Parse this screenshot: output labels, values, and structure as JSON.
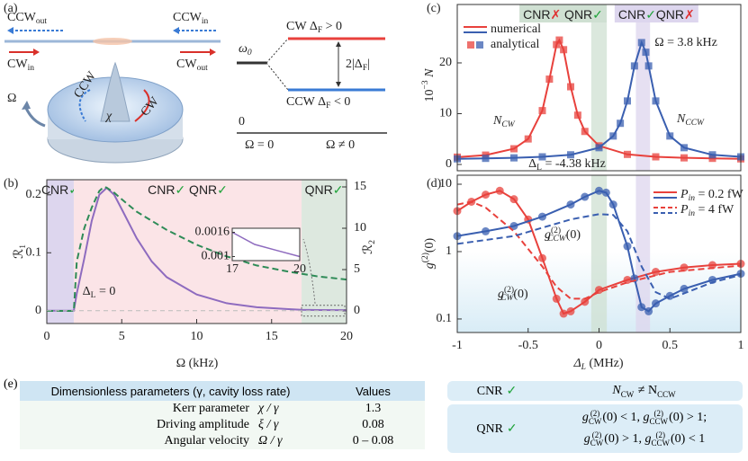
{
  "diagram": {
    "label": "(a)",
    "texts": [
      [
        {
          "t": "CCW",
          "sub": "out"
        }
      ],
      [
        {
          "t": "CCW",
          "sub": "in"
        }
      ],
      [
        {
          "t": "CW",
          "sub": "in"
        }
      ],
      [
        {
          "t": "CW",
          "sub": "out"
        }
      ],
      [
        {
          "t": "Ω"
        }
      ],
      [
        {
          "t": "CCW"
        }
      ],
      [
        {
          "t": "χ",
          "italic": true
        }
      ],
      [
        {
          "t": "CW"
        }
      ],
      [
        {
          "t": "ω",
          "sub": "0",
          "italic": true
        }
      ],
      [
        {
          "t": "CW   "
        },
        {
          "t": "Δ",
          "sub": "F"
        },
        {
          "t": " > 0"
        }
      ],
      [
        {
          "t": "2|Δ",
          "sub": "F"
        },
        {
          "t": "|"
        }
      ],
      [
        {
          "t": "CCW   "
        },
        {
          "t": "Δ",
          "sub": "F"
        },
        {
          "t": " < 0"
        }
      ],
      [
        {
          "t": "0"
        }
      ],
      [
        {
          "t": "Ω = 0"
        }
      ],
      [
        {
          "t": "Ω ≠ 0"
        }
      ]
    ]
  },
  "chart_data": [
    {
      "type": "line",
      "panel": "(b)",
      "x_label": [
        {
          "t": "Ω (kHz)"
        }
      ],
      "y_label": [
        {
          "t": "ℛ",
          "sub": "1"
        }
      ],
      "y2_label": [
        {
          "t": "ℛ",
          "sub": "2"
        }
      ],
      "xlim": [
        0,
        20
      ],
      "xticks": [
        0,
        5,
        10,
        15,
        20
      ],
      "ylim": [
        -0.022,
        0.226
      ],
      "yticks": [
        0,
        0.1,
        0.2
      ],
      "y_color": "#8e6bbf",
      "y2lim": [
        -1.52,
        15.87
      ],
      "y2ticks": [
        0,
        5,
        10,
        15
      ],
      "y2_color": "#2e8b57",
      "regions": [
        {
          "from": 0,
          "to": 1.8,
          "color": "#ddd6ee",
          "label": [
            {
              "t": "CNR"
            },
            {
              "t": "✓",
              "color": "#1fa33a"
            }
          ]
        },
        {
          "from": 1.8,
          "to": 17,
          "color": "#fbe4e7",
          "label": [
            {
              "t": "CNR"
            },
            {
              "t": "✓",
              "color": "#1fa33a"
            },
            {
              "t": " QNR"
            },
            {
              "t": "✓",
              "color": "#1fa33a"
            }
          ]
        },
        {
          "from": 17,
          "to": 20,
          "color": "#dde8df",
          "label": [
            {
              "t": "QNR"
            },
            {
              "t": "✓",
              "color": "#1fa33a"
            }
          ]
        }
      ],
      "series": [
        {
          "color": "#8e6bbf",
          "x": [
            0,
            1.8,
            2,
            2.5,
            3,
            3.5,
            4,
            4.5,
            5,
            6,
            7,
            8,
            10,
            12,
            14,
            16,
            17,
            18,
            20
          ],
          "values": [
            0,
            0,
            0.03,
            0.09,
            0.155,
            0.2,
            0.212,
            0.2,
            0.175,
            0.125,
            0.085,
            0.058,
            0.028,
            0.013,
            0.006,
            0.003,
            0.0016,
            0.0013,
            0.001
          ]
        },
        {
          "color": "#2e8b57",
          "dash": true,
          "axis": "y2",
          "x": [
            0,
            1.8,
            2,
            2.5,
            3,
            3.5,
            3.8,
            4,
            4.5,
            5,
            6,
            8,
            10,
            12,
            14,
            16,
            18,
            20
          ],
          "values": [
            0,
            0,
            6,
            10,
            12.5,
            14.5,
            15,
            14.9,
            14.3,
            13.5,
            12,
            9.8,
            8,
            6.6,
            5.5,
            4.8,
            4.2,
            3.8
          ]
        }
      ],
      "annotations": [
        [
          {
            "t": "Δ",
            "sub": "L"
          },
          {
            "t": " = 0"
          }
        ]
      ],
      "inset": {
        "xlim": [
          17,
          20
        ],
        "xticks": [
          17,
          20
        ],
        "ylim": [
          0.0009,
          0.0017
        ],
        "yticks": [
          0.001,
          0.0016
        ],
        "x": [
          17,
          18,
          19,
          20
        ],
        "values": [
          0.0016,
          0.0013,
          0.00115,
          0.001
        ],
        "color": "#8e6bbf"
      }
    },
    {
      "type": "line",
      "panel": "(c)",
      "y_label": [
        {
          "t": "10",
          "sup": "−3"
        },
        {
          "t": " N",
          "italic": true
        }
      ],
      "xlim": [
        -1,
        1
      ],
      "ylim": [
        -1.24,
        31.5
      ],
      "yticks": [
        0,
        10,
        20
      ],
      "regions": [
        {
          "from": -0.055,
          "to": 0.055,
          "color": "#cfe0d2",
          "label": [
            {
              "t": "CNR"
            },
            {
              "t": "✗",
              "color": "#e03030"
            },
            {
              "t": " QNR"
            },
            {
              "t": "✓",
              "color": "#1fa33a"
            }
          ]
        },
        {
          "from": 0.26,
          "to": 0.36,
          "color": "#ddd6ee",
          "label": [
            {
              "t": "CNR"
            },
            {
              "t": "✓",
              "color": "#1fa33a"
            },
            {
              "t": "QNR"
            },
            {
              "t": "✗",
              "color": "#e03030"
            }
          ]
        }
      ],
      "series": [
        {
          "color": "#e8413c",
          "marker": "square",
          "label": [
            {
              "t": "N",
              "sub": "CW",
              "italic": true
            }
          ],
          "x": [
            -1,
            -0.8,
            -0.6,
            -0.5,
            -0.4,
            -0.35,
            -0.3,
            -0.28,
            -0.25,
            -0.2,
            -0.15,
            -0.1,
            0,
            0.2,
            0.4,
            0.6,
            0.8,
            1
          ],
          "values": [
            1.44,
            1.84,
            3.09,
            5.02,
            10.6,
            16.8,
            23.6,
            24.5,
            22.6,
            15.3,
            9.7,
            6.5,
            3.66,
            1.98,
            1.5,
            1.3,
            1.2,
            1.1
          ]
        },
        {
          "color": "#3a5fb0",
          "marker": "square",
          "label": [
            {
              "t": "N",
              "sub": "CCW",
              "italic": true
            }
          ],
          "x": [
            -1,
            -0.8,
            -0.6,
            -0.4,
            -0.2,
            0,
            0.1,
            0.15,
            0.2,
            0.25,
            0.3,
            0.33,
            0.35,
            0.4,
            0.5,
            0.6,
            0.8,
            1
          ],
          "values": [
            1.1,
            1.2,
            1.3,
            1.5,
            1.9,
            3.3,
            5.6,
            8.1,
            12.5,
            19.4,
            24,
            22.1,
            19.4,
            12.5,
            5.6,
            3.3,
            1.9,
            1.5
          ]
        }
      ],
      "legend": [
        {
          "label": "numerical",
          "style": "line"
        },
        {
          "label": "analytical",
          "style": "marker"
        }
      ],
      "annotations": [
        [
          {
            "t": "Ω = 3.8 kHz"
          }
        ],
        [
          {
            "t": "Δ",
            "sub": "L"
          },
          {
            "t": " = -4.38 kHz"
          }
        ]
      ]
    },
    {
      "type": "line",
      "panel": "(d)",
      "log_y": true,
      "x_label": [
        {
          "t": "Δ",
          "sub": "L",
          "italic": true
        },
        {
          "t": " (MHz)"
        }
      ],
      "y_label": [
        {
          "t": "g",
          "sup": "(2)",
          "italic": true
        },
        {
          "t": "(0)"
        }
      ],
      "xlim": [
        -1,
        1
      ],
      "xticks": [
        -1,
        -0.5,
        0,
        0.5,
        1
      ],
      "ylim": [
        0.063,
        13.6
      ],
      "yticks": [
        0.1,
        1,
        10
      ],
      "regions": [
        {
          "from": -0.055,
          "to": 0.055,
          "color": "#cfe0d2"
        },
        {
          "from": 0.26,
          "to": 0.36,
          "color": "#ddd6ee"
        }
      ],
      "series": [
        {
          "color": "#e8413c",
          "marker": "circle",
          "label": [
            {
              "t": "g",
              "sup": "(2)",
              "sub": "CW",
              "italic": true
            },
            {
              "t": "(0)"
            }
          ],
          "x": [
            -1,
            -0.9,
            -0.8,
            -0.7,
            -0.6,
            -0.5,
            -0.4,
            -0.3,
            -0.25,
            -0.2,
            -0.1,
            0,
            0.2,
            0.4,
            0.6,
            0.8,
            1
          ],
          "values": [
            4,
            5.5,
            7,
            8,
            6,
            3,
            0.8,
            0.2,
            0.12,
            0.13,
            0.18,
            0.27,
            0.38,
            0.5,
            0.58,
            0.63,
            0.66
          ]
        },
        {
          "color": "#3a5fb0",
          "marker": "circle",
          "label": [
            {
              "t": "g",
              "sup": "(2)",
              "sub": "CCW",
              "italic": true
            },
            {
              "t": "(0)"
            }
          ],
          "x": [
            -1,
            -0.8,
            -0.6,
            -0.4,
            -0.2,
            -0.1,
            0,
            0.05,
            0.1,
            0.2,
            0.25,
            0.3,
            0.35,
            0.4,
            0.5,
            0.6,
            0.8,
            1
          ],
          "values": [
            1.7,
            2,
            2.4,
            3.3,
            5,
            6.5,
            8,
            7.5,
            5,
            1.2,
            0.4,
            0.15,
            0.13,
            0.17,
            0.22,
            0.28,
            0.38,
            0.47
          ]
        },
        {
          "color": "#e8413c",
          "dash": true,
          "x": [
            -1,
            -0.9,
            -0.8,
            -0.6,
            -0.4,
            -0.3,
            -0.2,
            -0.1,
            0,
            0.2,
            0.5,
            1
          ],
          "values": [
            5,
            5.5,
            4.5,
            2,
            0.6,
            0.3,
            0.2,
            0.2,
            0.25,
            0.35,
            0.5,
            0.62
          ]
        },
        {
          "color": "#3a5fb0",
          "dash": true,
          "x": [
            -1,
            -0.6,
            -0.2,
            0,
            0.1,
            0.2,
            0.3,
            0.4,
            0.5,
            0.6,
            0.8,
            1
          ],
          "values": [
            1.3,
            1.7,
            3,
            3.6,
            3.5,
            2,
            0.6,
            0.25,
            0.2,
            0.24,
            0.35,
            0.45
          ]
        }
      ],
      "legend": [
        {
          "label": [
            {
              "t": "P",
              "sub": "in",
              "italic": true
            },
            {
              "t": " = 0.2 fW"
            }
          ],
          "style": "solid"
        },
        {
          "label": [
            {
              "t": "P",
              "sub": "in",
              "italic": true
            },
            {
              "t": " = 4 fW"
            }
          ],
          "style": "dashed"
        }
      ]
    }
  ],
  "table": {
    "label": "(e)",
    "header": [
      "Dimensionless parameters (γ, cavity loss rate)",
      "Values"
    ],
    "rows": [
      [
        "Kerr parameter",
        "χ / γ",
        "1.3"
      ],
      [
        "Driving amplitude",
        "ξ / γ",
        "0.08"
      ],
      [
        "Angular velocity",
        "Ω / γ",
        "0 – 0.08"
      ]
    ]
  },
  "conditions": [
    {
      "name": "CNR",
      "mark": "✓",
      "formula": [
        [
          {
            "t": "N",
            "sub": "CW"
          },
          {
            "t": " ≠ N"
          },
          {
            "t": "",
            "sub": "CCW"
          }
        ]
      ]
    },
    {
      "name": "QNR",
      "mark": "✓",
      "formula": [
        [
          {
            "t": "g",
            "sup": "(2)",
            "sub": "CW"
          },
          {
            "t": "(0) < 1,  "
          },
          {
            "t": "g",
            "sup": "(2)",
            "sub": "CCW"
          },
          {
            "t": "(0) > 1;"
          }
        ],
        [
          {
            "t": "g",
            "sup": "(2)",
            "sub": "CW"
          },
          {
            "t": "(0) > 1,  "
          },
          {
            "t": "g",
            "sup": "(2)",
            "sub": "CCW"
          },
          {
            "t": "(0) < 1"
          }
        ]
      ]
    }
  ]
}
